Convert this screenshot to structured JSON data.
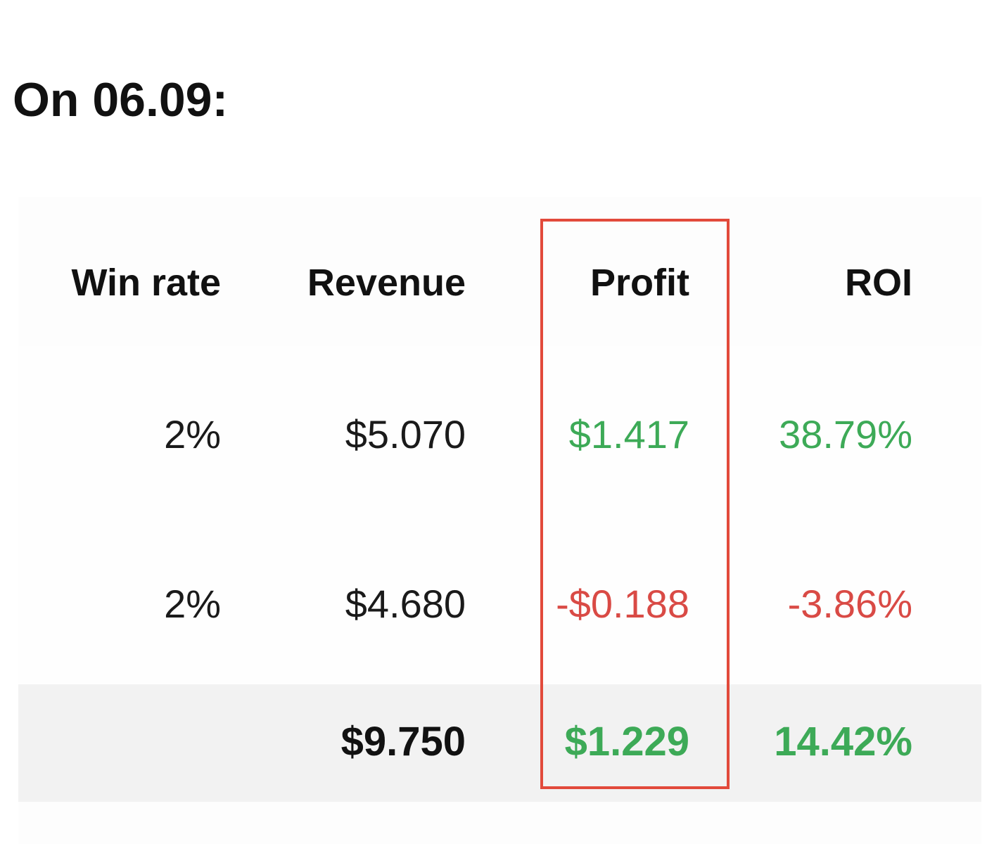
{
  "title": "On 06.09:",
  "table": {
    "columns": [
      "Win rate",
      "Revenue",
      "Profit",
      "ROI"
    ],
    "rows": [
      {
        "win_rate": "2%",
        "revenue": "$5.070",
        "profit": "$1.417",
        "roi": "38.79%"
      },
      {
        "win_rate": "2%",
        "revenue": "$4.680",
        "profit": "-$0.188",
        "roi": "-3.86%"
      }
    ],
    "total": {
      "win_rate": "",
      "revenue": "$9.750",
      "profit": "$1.229",
      "roi": "14.42%"
    }
  },
  "highlight": {
    "column": "Profit",
    "color": "#e24a3b"
  },
  "colors": {
    "positive": "#3daa57",
    "negative": "#d94a45",
    "text": "#111111",
    "total_row_bg": "#f2f2f2"
  }
}
